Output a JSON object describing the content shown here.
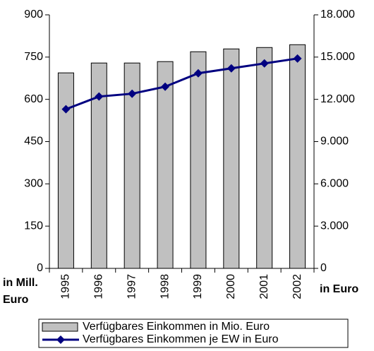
{
  "chart_data": {
    "type": "bar-line",
    "categories": [
      "1995",
      "1996",
      "1997",
      "1998",
      "1999",
      "2000",
      "2001",
      "2002"
    ],
    "series": [
      {
        "name": "Verfügbares Einkommen in Mio. Euro",
        "color": "#c0c0c0",
        "type": "bar",
        "values": [
          694,
          729,
          729,
          734,
          769,
          779,
          784,
          794
        ]
      },
      {
        "name": "Verfügbares Einkommen je EW in Euro",
        "color": "#000080",
        "type": "line",
        "axis": "y2",
        "values": [
          11300,
          12200,
          12400,
          12900,
          13850,
          14200,
          14550,
          14900
        ]
      }
    ],
    "y_label": "in Mill. Euro",
    "y2_label": "in Euro",
    "ylim": [
      0,
      900
    ],
    "yticks": [
      0,
      150,
      300,
      450,
      600,
      750,
      900
    ],
    "y2lim": [
      0,
      18000
    ],
    "y2ticks": [
      0,
      {
        "value": 3000,
        "label": "3.000"
      },
      {
        "value": 6000,
        "label": "6.000"
      },
      {
        "value": 9000,
        "label": "9.000"
      },
      {
        "value": 12000,
        "label": "12.000"
      },
      {
        "value": 15000,
        "label": "15.000"
      },
      {
        "value": 18000,
        "label": "18.000"
      }
    ],
    "legend": "bottom"
  }
}
